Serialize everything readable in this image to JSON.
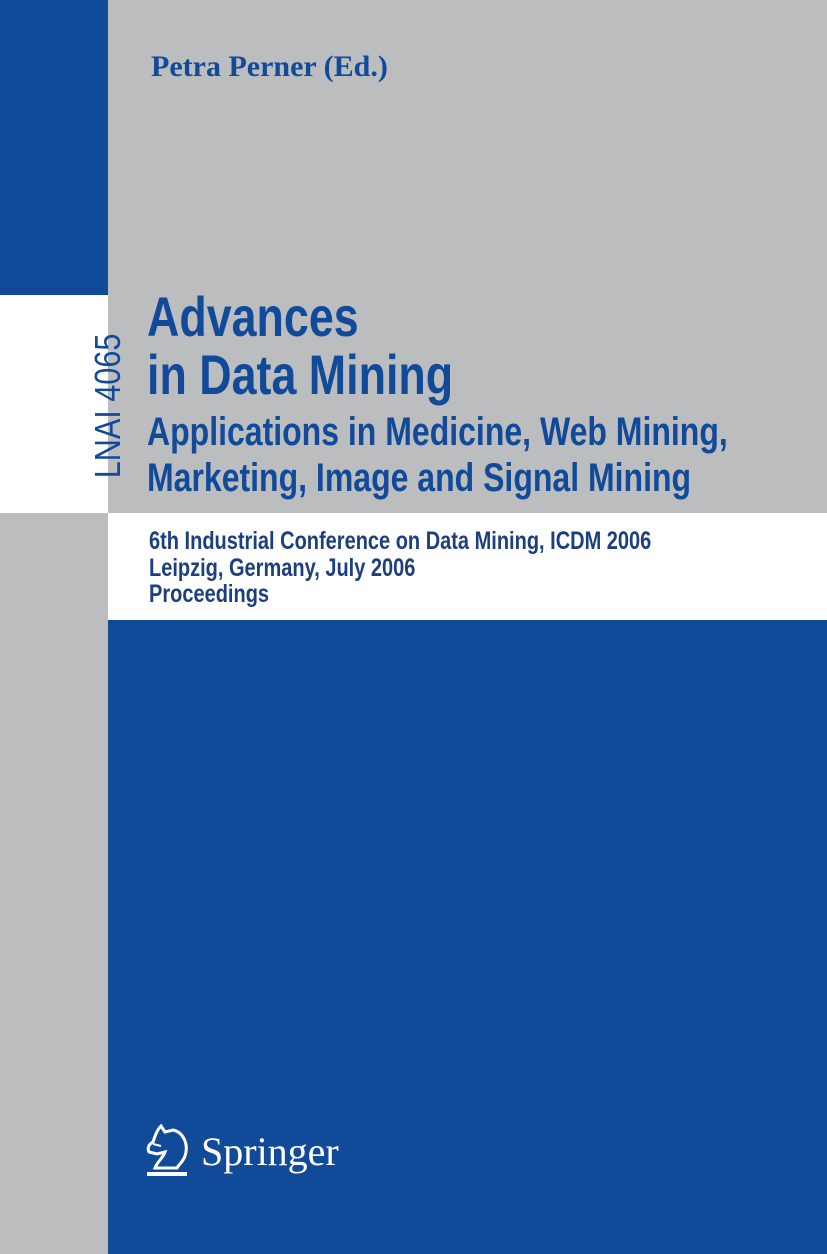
{
  "colors": {
    "blue": "#124a9a",
    "gray": "#bcbdbf",
    "white": "#ffffff"
  },
  "cover": {
    "editor": "Petra Perner (Ed.)",
    "series": "LNAI 4065",
    "title_lines": [
      "Advances",
      "in Data Mining"
    ],
    "subtitle_lines": [
      "Applications in Medicine, Web Mining,",
      "Marketing, Image and Signal Mining"
    ],
    "conference_lines": [
      "6th Industrial Conference on Data Mining, ICDM 2006",
      "Leipzig, Germany, July 2006",
      "Proceedings"
    ],
    "publisher": "Springer",
    "publisher_logo": "springer-horse-icon"
  }
}
